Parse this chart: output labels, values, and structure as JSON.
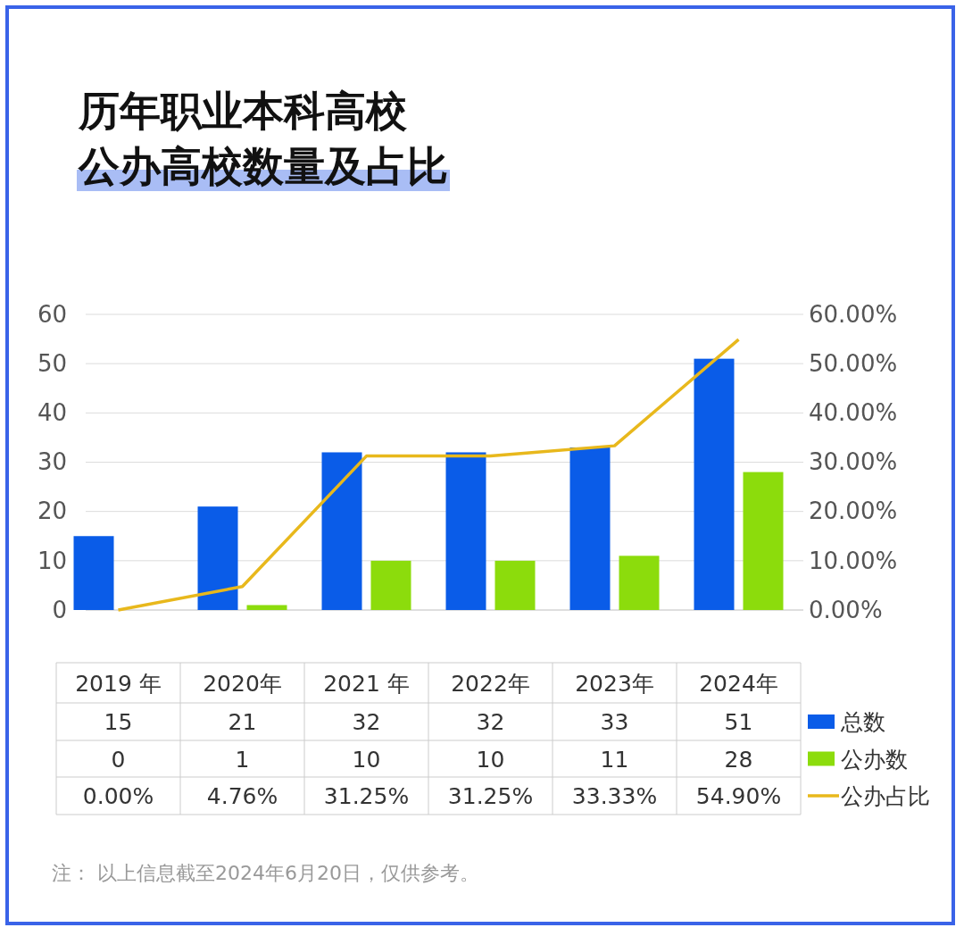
{
  "chart_data": {
    "type": "bar",
    "title": "历年职业本科高校",
    "subtitle": "公办高校数量及占比",
    "categories": [
      "2019 年",
      "2020年",
      "2021 年",
      "2022年",
      "2023年",
      "2024年"
    ],
    "series": [
      {
        "name": "总数",
        "color": "#0a5ce8",
        "values": [
          15,
          21,
          32,
          32,
          33,
          51
        ]
      },
      {
        "name": "公办数",
        "color": "#8cdc0c",
        "values": [
          0,
          1,
          10,
          10,
          11,
          28
        ]
      },
      {
        "name": "公办占比",
        "type": "line",
        "axis": "y2",
        "color": "#e8b81c",
        "values": [
          0,
          4.76,
          31.25,
          31.25,
          33.33,
          54.9
        ],
        "value_labels": [
          "0.00%",
          "4.76%",
          "31.25%",
          "31.25%",
          "33.33%",
          "54.90%"
        ]
      }
    ],
    "ylim": [
      0,
      60
    ],
    "yticks": [
      0,
      10,
      20,
      30,
      40,
      50,
      60
    ],
    "y2lim": [
      0,
      60
    ],
    "y2ticks": [
      {
        "value": 0,
        "label": "0.00%"
      },
      {
        "value": 10,
        "label": "10.00%"
      },
      {
        "value": 20,
        "label": "20.00%"
      },
      {
        "value": 30,
        "label": "30.00%"
      },
      {
        "value": 40,
        "label": "40.00%"
      },
      {
        "value": 50,
        "label": "50.00%"
      },
      {
        "value": 60,
        "label": "60.00%"
      }
    ],
    "grid": "y",
    "legend": "right",
    "data_labels": true,
    "annotations": [
      "注： 以上信息截至2024年6月20日，仅供参考。"
    ]
  }
}
